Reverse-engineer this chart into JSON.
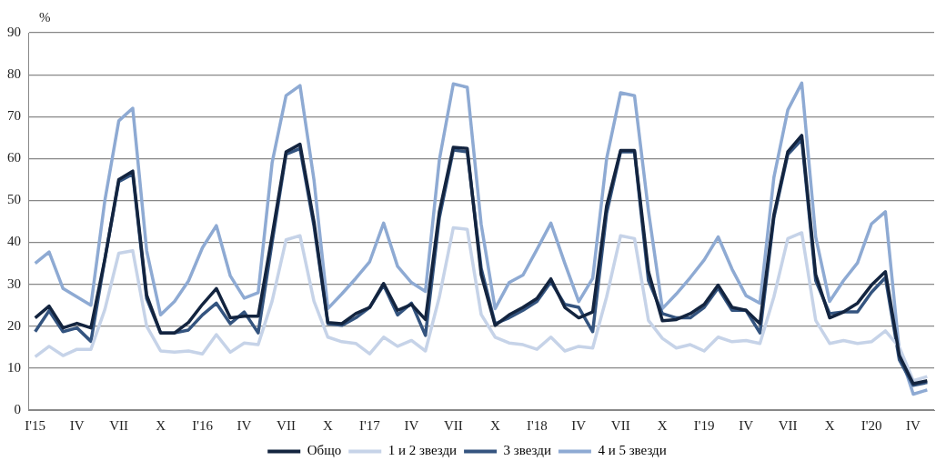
{
  "chart_data": {
    "type": "line",
    "ylabel": "%",
    "categories": [
      "I'15",
      null,
      null,
      "IV",
      null,
      null,
      "VII",
      null,
      null,
      "X",
      null,
      null,
      "I'16",
      null,
      null,
      "IV",
      null,
      null,
      "VII",
      null,
      null,
      "X",
      null,
      null,
      "I'17",
      null,
      null,
      "IV",
      null,
      null,
      "VII",
      null,
      null,
      "X",
      null,
      null,
      "I'18",
      null,
      null,
      "IV",
      null,
      null,
      "VII",
      null,
      null,
      "X",
      null,
      null,
      "I'19",
      null,
      null,
      "IV",
      null,
      null,
      "VII",
      null,
      null,
      "X",
      null,
      null,
      "I'20",
      null,
      null,
      "IV",
      null
    ],
    "series": [
      {
        "name": "Общо",
        "color": "#13243f",
        "values": [
          22,
          24.8,
          19.6,
          20.7,
          19.6,
          36,
          55,
          57,
          27.4,
          18.4,
          18.4,
          20.9,
          25.2,
          29,
          22,
          22.4,
          22.4,
          41.6,
          61.6,
          63.4,
          45,
          20.9,
          20.6,
          23,
          24.5,
          30.2,
          23.8,
          25.2,
          21.6,
          47.3,
          62.7,
          62.4,
          32.3,
          20.2,
          22.7,
          24.5,
          26.6,
          31.3,
          24.5,
          22,
          23.4,
          48.7,
          61.9,
          61.9,
          33,
          21.3,
          21.6,
          23,
          25.2,
          29.8,
          24.5,
          23.8,
          20.6,
          46.6,
          61.6,
          65.5,
          32.3,
          22,
          23.4,
          25.5,
          29.8,
          33,
          13,
          6.3,
          7
        ]
      },
      {
        "name": "1 и 2 звезди",
        "color": "#c6d3e8",
        "values": [
          12.7,
          15.2,
          13,
          14.5,
          14.5,
          24,
          37.4,
          38,
          20,
          14.1,
          13.8,
          14.1,
          13.4,
          18,
          13.8,
          16,
          15.6,
          26,
          40.6,
          41.6,
          26,
          17.4,
          16.3,
          15.9,
          13.4,
          17.4,
          15.2,
          16.6,
          14.1,
          27,
          43.5,
          43.1,
          22.8,
          17.4,
          16,
          15.6,
          14.5,
          17.4,
          14.1,
          15.2,
          14.8,
          27,
          41.6,
          40.9,
          21.4,
          17.1,
          14.8,
          15.6,
          14.1,
          17.4,
          16.3,
          16.6,
          15.9,
          27,
          40.9,
          42.3,
          21.4,
          15.9,
          16.6,
          15.9,
          16.3,
          18.9,
          15,
          7,
          8
        ]
      },
      {
        "name": "3 звезди",
        "color": "#34547f",
        "values": [
          18.7,
          23.7,
          18.7,
          19.6,
          16.4,
          36,
          54.5,
          56.3,
          26.6,
          18.4,
          18.4,
          19.1,
          22.7,
          25.5,
          20.6,
          23.4,
          18.4,
          40,
          61,
          62.4,
          44,
          20.6,
          20.2,
          22,
          24.5,
          29.8,
          22.7,
          25.5,
          17.8,
          45.9,
          62,
          61.6,
          33.8,
          20.6,
          22,
          23.8,
          25.9,
          30.6,
          25.2,
          24.5,
          18.7,
          47,
          61.6,
          61.6,
          30.9,
          23,
          22,
          22,
          24.5,
          29.1,
          23.8,
          23.8,
          18.4,
          45.9,
          61,
          64.5,
          30.9,
          23,
          23.4,
          23.4,
          28.1,
          31.6,
          12,
          5.9,
          6.6
        ]
      },
      {
        "name": "4 и 5 звезди",
        "color": "#8eaad3",
        "values": [
          35,
          37.7,
          29,
          27,
          25,
          50,
          69,
          72,
          38,
          22.7,
          25.9,
          30.8,
          38.7,
          44,
          32,
          26.7,
          28,
          59,
          75,
          77.4,
          55,
          24.2,
          27.7,
          31.4,
          35.4,
          44.6,
          34.3,
          30.4,
          28.3,
          59.7,
          77.8,
          77,
          44.3,
          24.2,
          30.4,
          32.2,
          38.3,
          44.6,
          35,
          25.9,
          31.4,
          60,
          75.7,
          75,
          47.5,
          24.2,
          27.7,
          31.6,
          35.8,
          41.3,
          33.6,
          27.3,
          25.5,
          55.5,
          71.6,
          78,
          41.3,
          25.9,
          30.9,
          35.1,
          44.4,
          47.3,
          14,
          3.8,
          4.8
        ]
      }
    ],
    "ylim": [
      0,
      90
    ],
    "yticks": [
      0,
      10,
      20,
      30,
      40,
      50,
      60,
      70,
      80,
      90
    ],
    "grid": "y",
    "legend": "bottom",
    "marker": "none",
    "line_style": "solid"
  }
}
